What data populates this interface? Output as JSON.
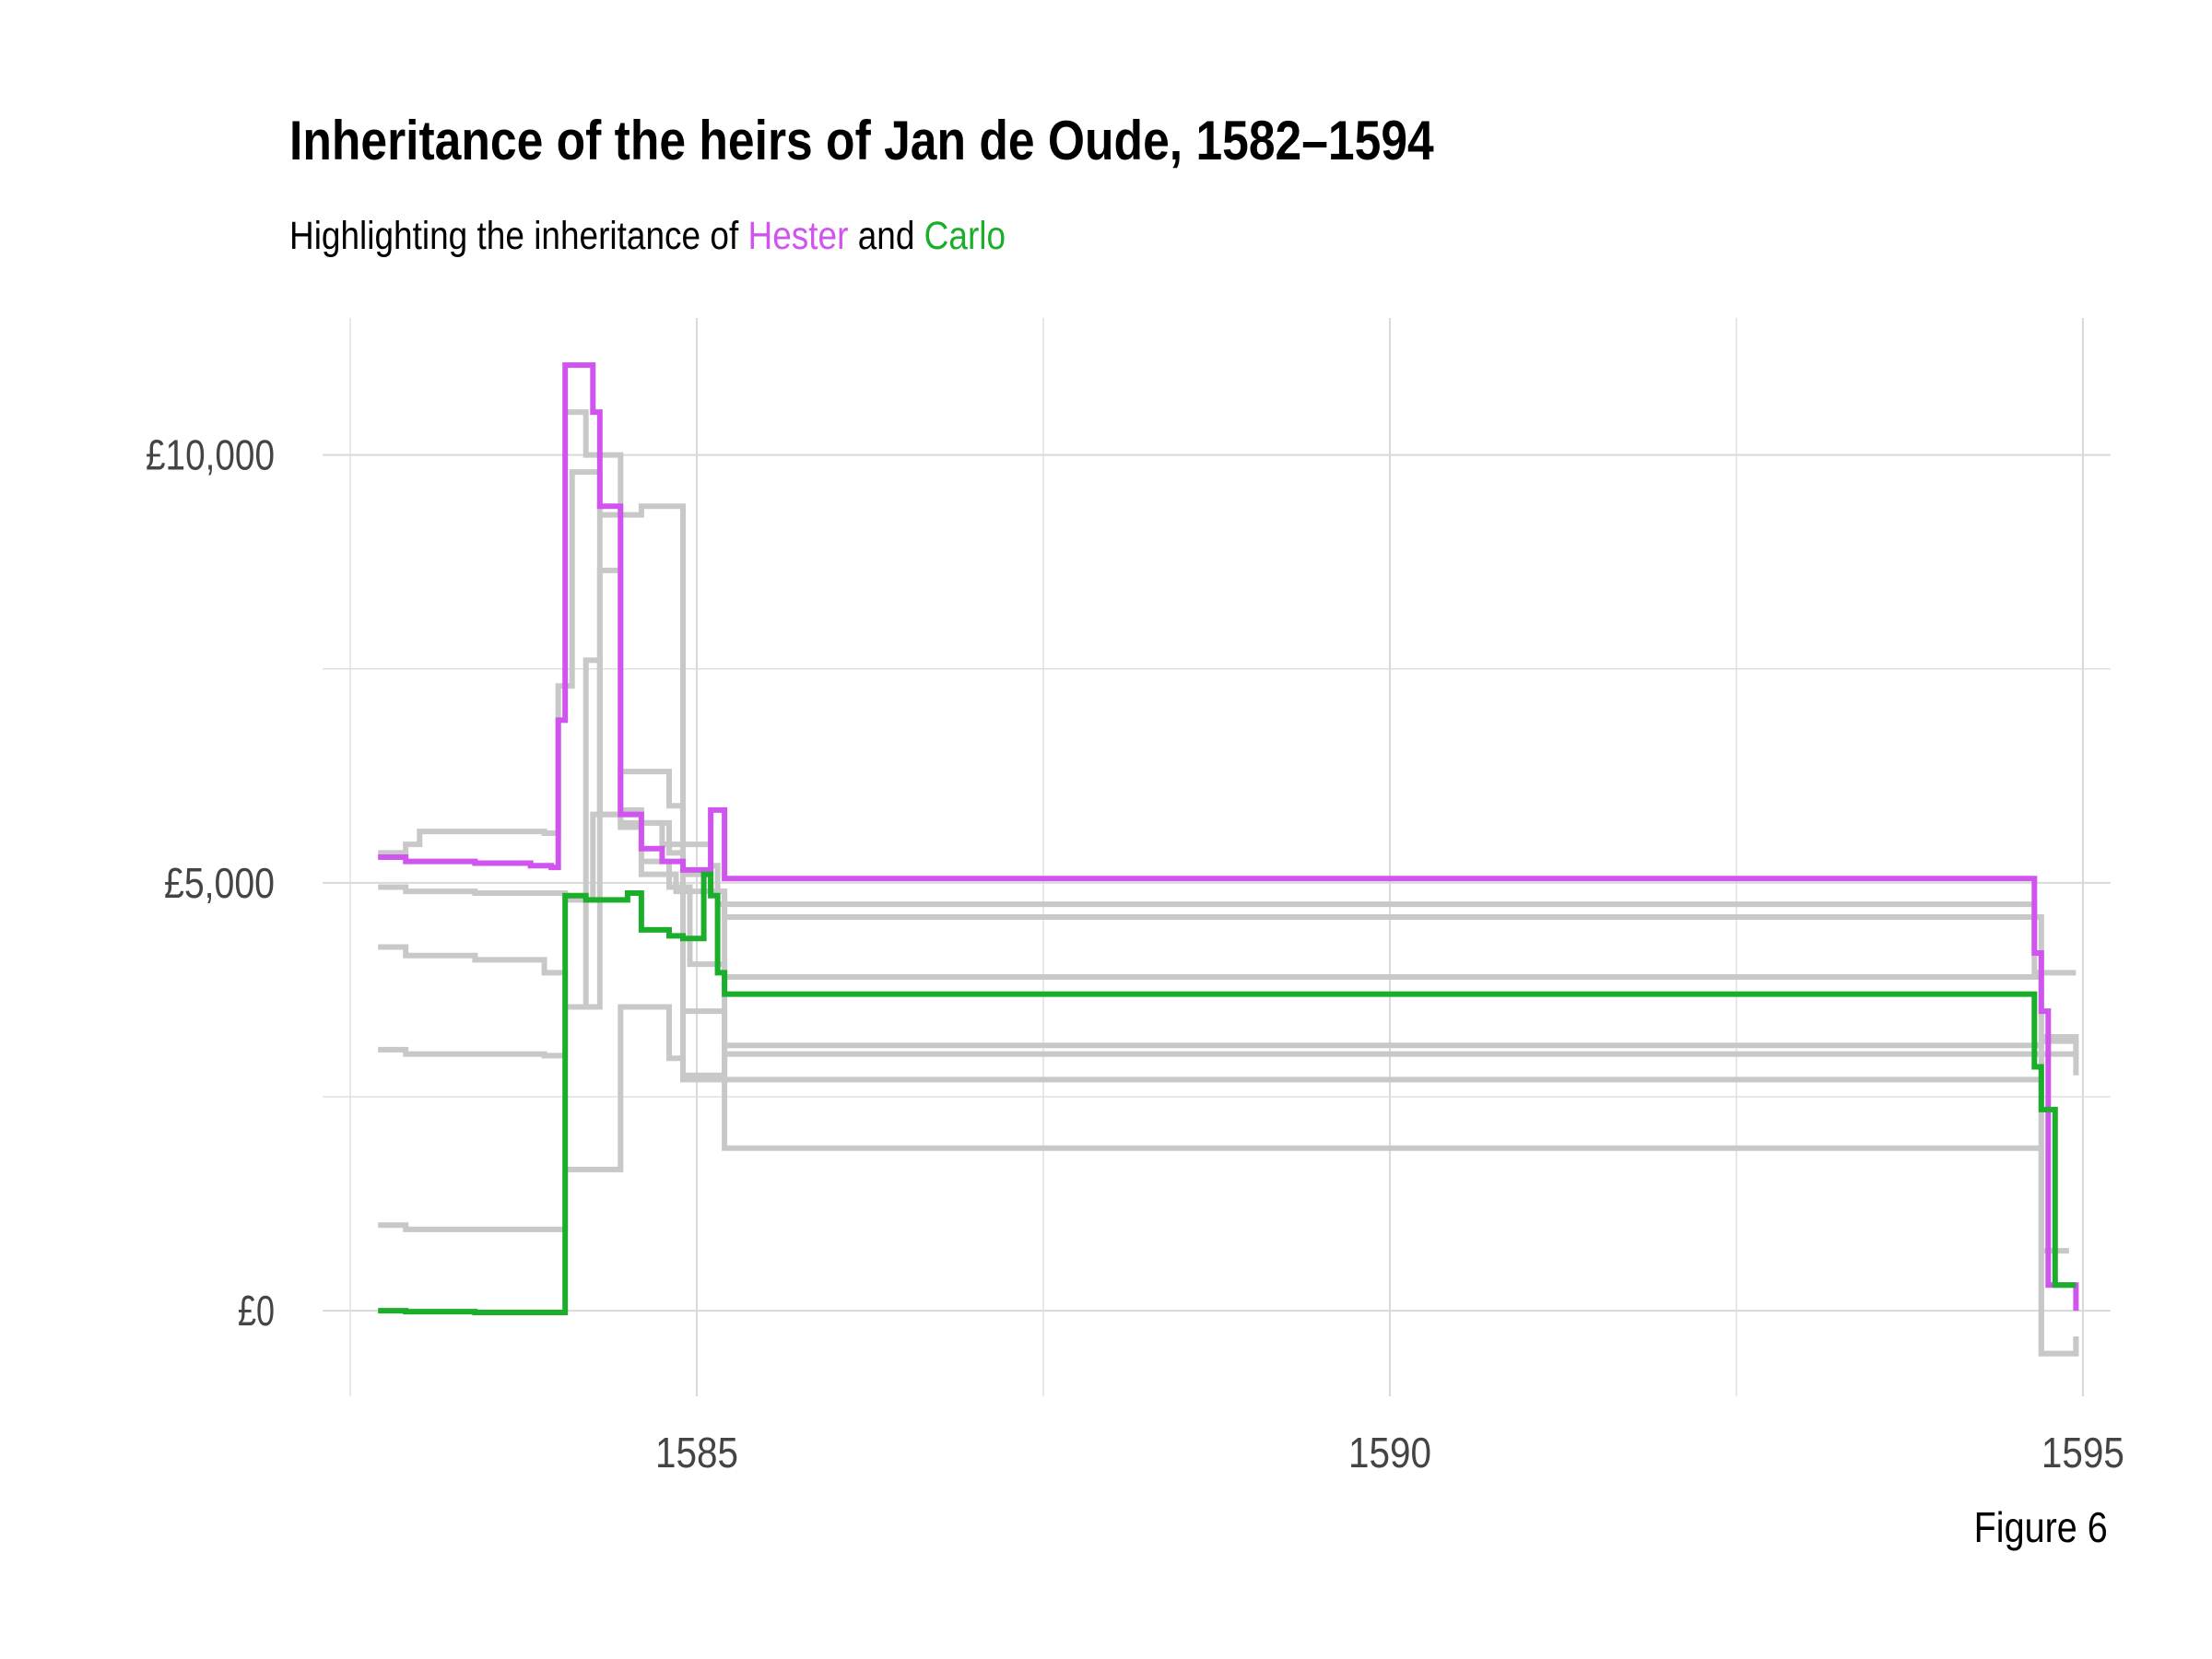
{
  "title": "Inheritance of the heirs of Jan de Oude, 1582–1594",
  "subtitle": {
    "prefix": "Highlighting the inheritance of ",
    "hester": "Hester",
    "conjunction": " and ",
    "carlo": "Carlo"
  },
  "caption": "Figure 6",
  "colors": {
    "hester": "#D055EE",
    "carlo": "#1BAE2B",
    "others": "#C8C8C8",
    "grid": "#D9D9D9",
    "text": "#444444"
  },
  "chart_data": {
    "type": "line",
    "step": true,
    "title": "Inheritance of the heirs of Jan de Oude, 1582–1594",
    "subtitle": "Highlighting the inheritance of Hester and Carlo",
    "xlabel": "",
    "ylabel": "",
    "x_ticks": [
      1585,
      1590,
      1595
    ],
    "y_ticks": [
      0,
      5000,
      10000
    ],
    "y_tick_labels": [
      "£0",
      "£5,000",
      "£10,000"
    ],
    "xlim": [
      1582.3,
      1595.2
    ],
    "ylim": [
      -1000,
      11600
    ],
    "grid": true,
    "legend": "none",
    "series": [
      {
        "name": "Hester",
        "highlight": "hester",
        "x": [
          1582.7,
          1582.9,
          1583.4,
          1583.8,
          1583.95,
          1584.0,
          1584.05,
          1584.25,
          1584.3,
          1584.45,
          1584.6,
          1584.75,
          1584.9,
          1585.1,
          1585.2,
          1594.65,
          1594.7,
          1594.75,
          1594.95
        ],
        "y": [
          5300,
          5250,
          5230,
          5200,
          5180,
          6900,
          11050,
          10500,
          9400,
          5800,
          5400,
          5250,
          5150,
          5850,
          5050,
          4180,
          3500,
          300,
          0
        ]
      },
      {
        "name": "Carlo",
        "highlight": "carlo",
        "x": [
          1582.7,
          1582.9,
          1583.4,
          1583.98,
          1584.05,
          1584.2,
          1584.5,
          1584.6,
          1584.8,
          1584.9,
          1585.05,
          1585.1,
          1585.15,
          1585.2,
          1594.65,
          1594.7,
          1594.8,
          1594.95
        ],
        "y": [
          0,
          -10,
          -20,
          -20,
          4850,
          4800,
          4880,
          4450,
          4380,
          4350,
          5100,
          4850,
          3950,
          3700,
          2850,
          2350,
          300,
          300
        ]
      },
      {
        "x": [
          1582.7,
          1582.9,
          1583.0,
          1583.5,
          1583.9,
          1584.0,
          1584.1,
          1584.3,
          1584.45,
          1584.6,
          1584.75,
          1585.1,
          1585.15,
          1594.65,
          1594.7,
          1594.95
        ],
        "y": [
          5350,
          5450,
          5600,
          5600,
          5580,
          7300,
          9800,
          5800,
          5850,
          5700,
          5450,
          5200,
          4750,
          3950,
          3950,
          3950
        ]
      },
      {
        "x": [
          1582.7,
          1582.9,
          1583.4,
          1583.9,
          1584.05,
          1584.25,
          1584.45,
          1584.8,
          1584.9,
          1585.1,
          1585.2,
          1594.65,
          1594.7,
          1594.95
        ],
        "y": [
          4950,
          4900,
          4880,
          4880,
          4800,
          5800,
          6300,
          5900,
          5100,
          4900,
          4600,
          4600,
          3200,
          2950
        ]
      },
      {
        "x": [
          1582.7,
          1582.9,
          1583.4,
          1583.9,
          1584.05,
          1584.2,
          1584.3,
          1584.6,
          1584.8,
          1584.95,
          1585.2,
          1594.65,
          1594.7,
          1594.9
        ],
        "y": [
          4250,
          4150,
          4100,
          3950,
          3550,
          7600,
          5800,
          5250,
          4950,
          4050,
          3900,
          3900,
          700,
          700
        ]
      },
      {
        "x": [
          1582.7,
          1582.9,
          1583.4,
          1583.9,
          1584.05,
          1584.3,
          1584.45,
          1584.6,
          1584.85,
          1585.2,
          1594.65,
          1594.7,
          1594.95
        ],
        "y": [
          3050,
          3000,
          3000,
          2980,
          3550,
          8650,
          5650,
          5100,
          4900,
          3100,
          3100,
          3150,
          2950
        ]
      },
      {
        "x": [
          1582.7,
          1582.9,
          1583.9,
          1584.05,
          1584.45,
          1584.65,
          1584.8,
          1584.9,
          1585.2,
          1594.65,
          1594.7,
          1594.95
        ],
        "y": [
          1000,
          950,
          950,
          1650,
          3550,
          3550,
          2950,
          2750,
          3000,
          3000,
          3000,
          2750
        ]
      },
      {
        "x": [
          1584.05,
          1584.2,
          1584.45,
          1584.8,
          1584.9,
          1585.2,
          1594.65,
          1594.7,
          1594.95
        ],
        "y": [
          10500,
          10000,
          5700,
          5350,
          3500,
          1900,
          1900,
          -500,
          -300
        ]
      },
      {
        "x": [
          1584.3,
          1584.6,
          1584.8,
          1584.9,
          1585.2,
          1594.65,
          1594.7,
          1594.95
        ],
        "y": [
          9300,
          9400,
          9400,
          2700,
          2700,
          2700,
          -500,
          -300
        ]
      }
    ]
  }
}
